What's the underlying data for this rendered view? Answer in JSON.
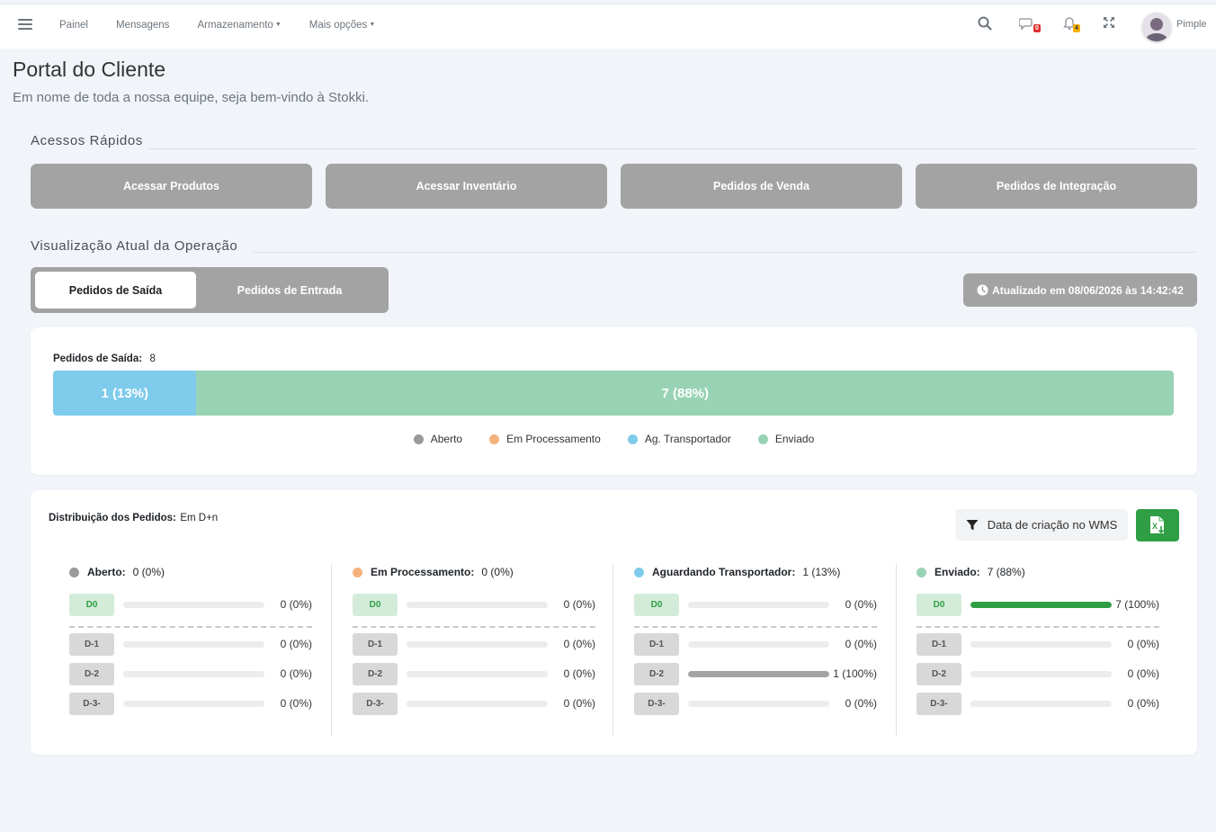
{
  "nav": {
    "items": [
      "Painel",
      "Mensagens",
      "Armazenamento",
      "Mais opções"
    ],
    "messages_badge": "0",
    "notifications_badge": "4",
    "user": "Pimple"
  },
  "header": {
    "title": "Portal do Cliente",
    "subtitle": "Em nome de toda a nossa equipe, seja bem-vindo à Stokki."
  },
  "quick": {
    "title": "Acessos Rápidos",
    "buttons": [
      "Acessar Produtos",
      "Acessar Inventário",
      "Pedidos de Venda",
      "Pedidos de Integração"
    ]
  },
  "operation": {
    "title": "Visualização Atual da Operação",
    "tabs": [
      "Pedidos de Saída",
      "Pedidos de Entrada"
    ],
    "updated": "Atualizado em 08/06/2026 às 14:42:42"
  },
  "summary": {
    "label": "Pedidos de Saída:",
    "total": "8",
    "segments": [
      {
        "label": "1 (13%)",
        "fraction": 0.128,
        "color": "#7ecbeb"
      },
      {
        "label": "7 (88%)",
        "fraction": 0.872,
        "color": "#99d3b5"
      }
    ],
    "legend": [
      {
        "label": "Aberto",
        "color": "#9a9a9a"
      },
      {
        "label": "Em Processamento",
        "color": "#f5b27c"
      },
      {
        "label": "Ag. Transportador",
        "color": "#7ecbeb"
      },
      {
        "label": "Enviado",
        "color": "#99d3b5"
      }
    ]
  },
  "distribution": {
    "label": "Distribuição dos Pedidos:",
    "mode": "Em D+n",
    "filter": "Data de criação no WMS",
    "columns": [
      {
        "title": "Aberto:",
        "count": "0 (0%)",
        "color": "#9a9a9a",
        "rows": [
          {
            "tag": "D0",
            "value": "0 (0%)",
            "fraction": 0
          },
          {
            "tag": "D-1",
            "value": "0 (0%)",
            "fraction": 0
          },
          {
            "tag": "D-2",
            "value": "0 (0%)",
            "fraction": 0
          },
          {
            "tag": "D-3-",
            "value": "0 (0%)",
            "fraction": 0
          }
        ]
      },
      {
        "title": "Em Processamento:",
        "count": "0 (0%)",
        "color": "#f5b27c",
        "rows": [
          {
            "tag": "D0",
            "value": "0 (0%)",
            "fraction": 0
          },
          {
            "tag": "D-1",
            "value": "0 (0%)",
            "fraction": 0
          },
          {
            "tag": "D-2",
            "value": "0 (0%)",
            "fraction": 0
          },
          {
            "tag": "D-3-",
            "value": "0 (0%)",
            "fraction": 0
          }
        ]
      },
      {
        "title": "Aguardando Transportador:",
        "count": "1 (13%)",
        "color": "#7ecbeb",
        "rows": [
          {
            "tag": "D0",
            "value": "0 (0%)",
            "fraction": 0
          },
          {
            "tag": "D-1",
            "value": "0 (0%)",
            "fraction": 0
          },
          {
            "tag": "D-2",
            "value": "1 (100%)",
            "fraction": 1
          },
          {
            "tag": "D-3-",
            "value": "0 (0%)",
            "fraction": 0
          }
        ]
      },
      {
        "title": "Enviado:",
        "count": "7 (88%)",
        "color": "#99d3b5",
        "rows": [
          {
            "tag": "D0",
            "value": "7 (100%)",
            "fraction": 1
          },
          {
            "tag": "D-1",
            "value": "0 (0%)",
            "fraction": 0
          },
          {
            "tag": "D-2",
            "value": "0 (0%)",
            "fraction": 0
          },
          {
            "tag": "D-3-",
            "value": "0 (0%)",
            "fraction": 0
          }
        ]
      }
    ]
  }
}
